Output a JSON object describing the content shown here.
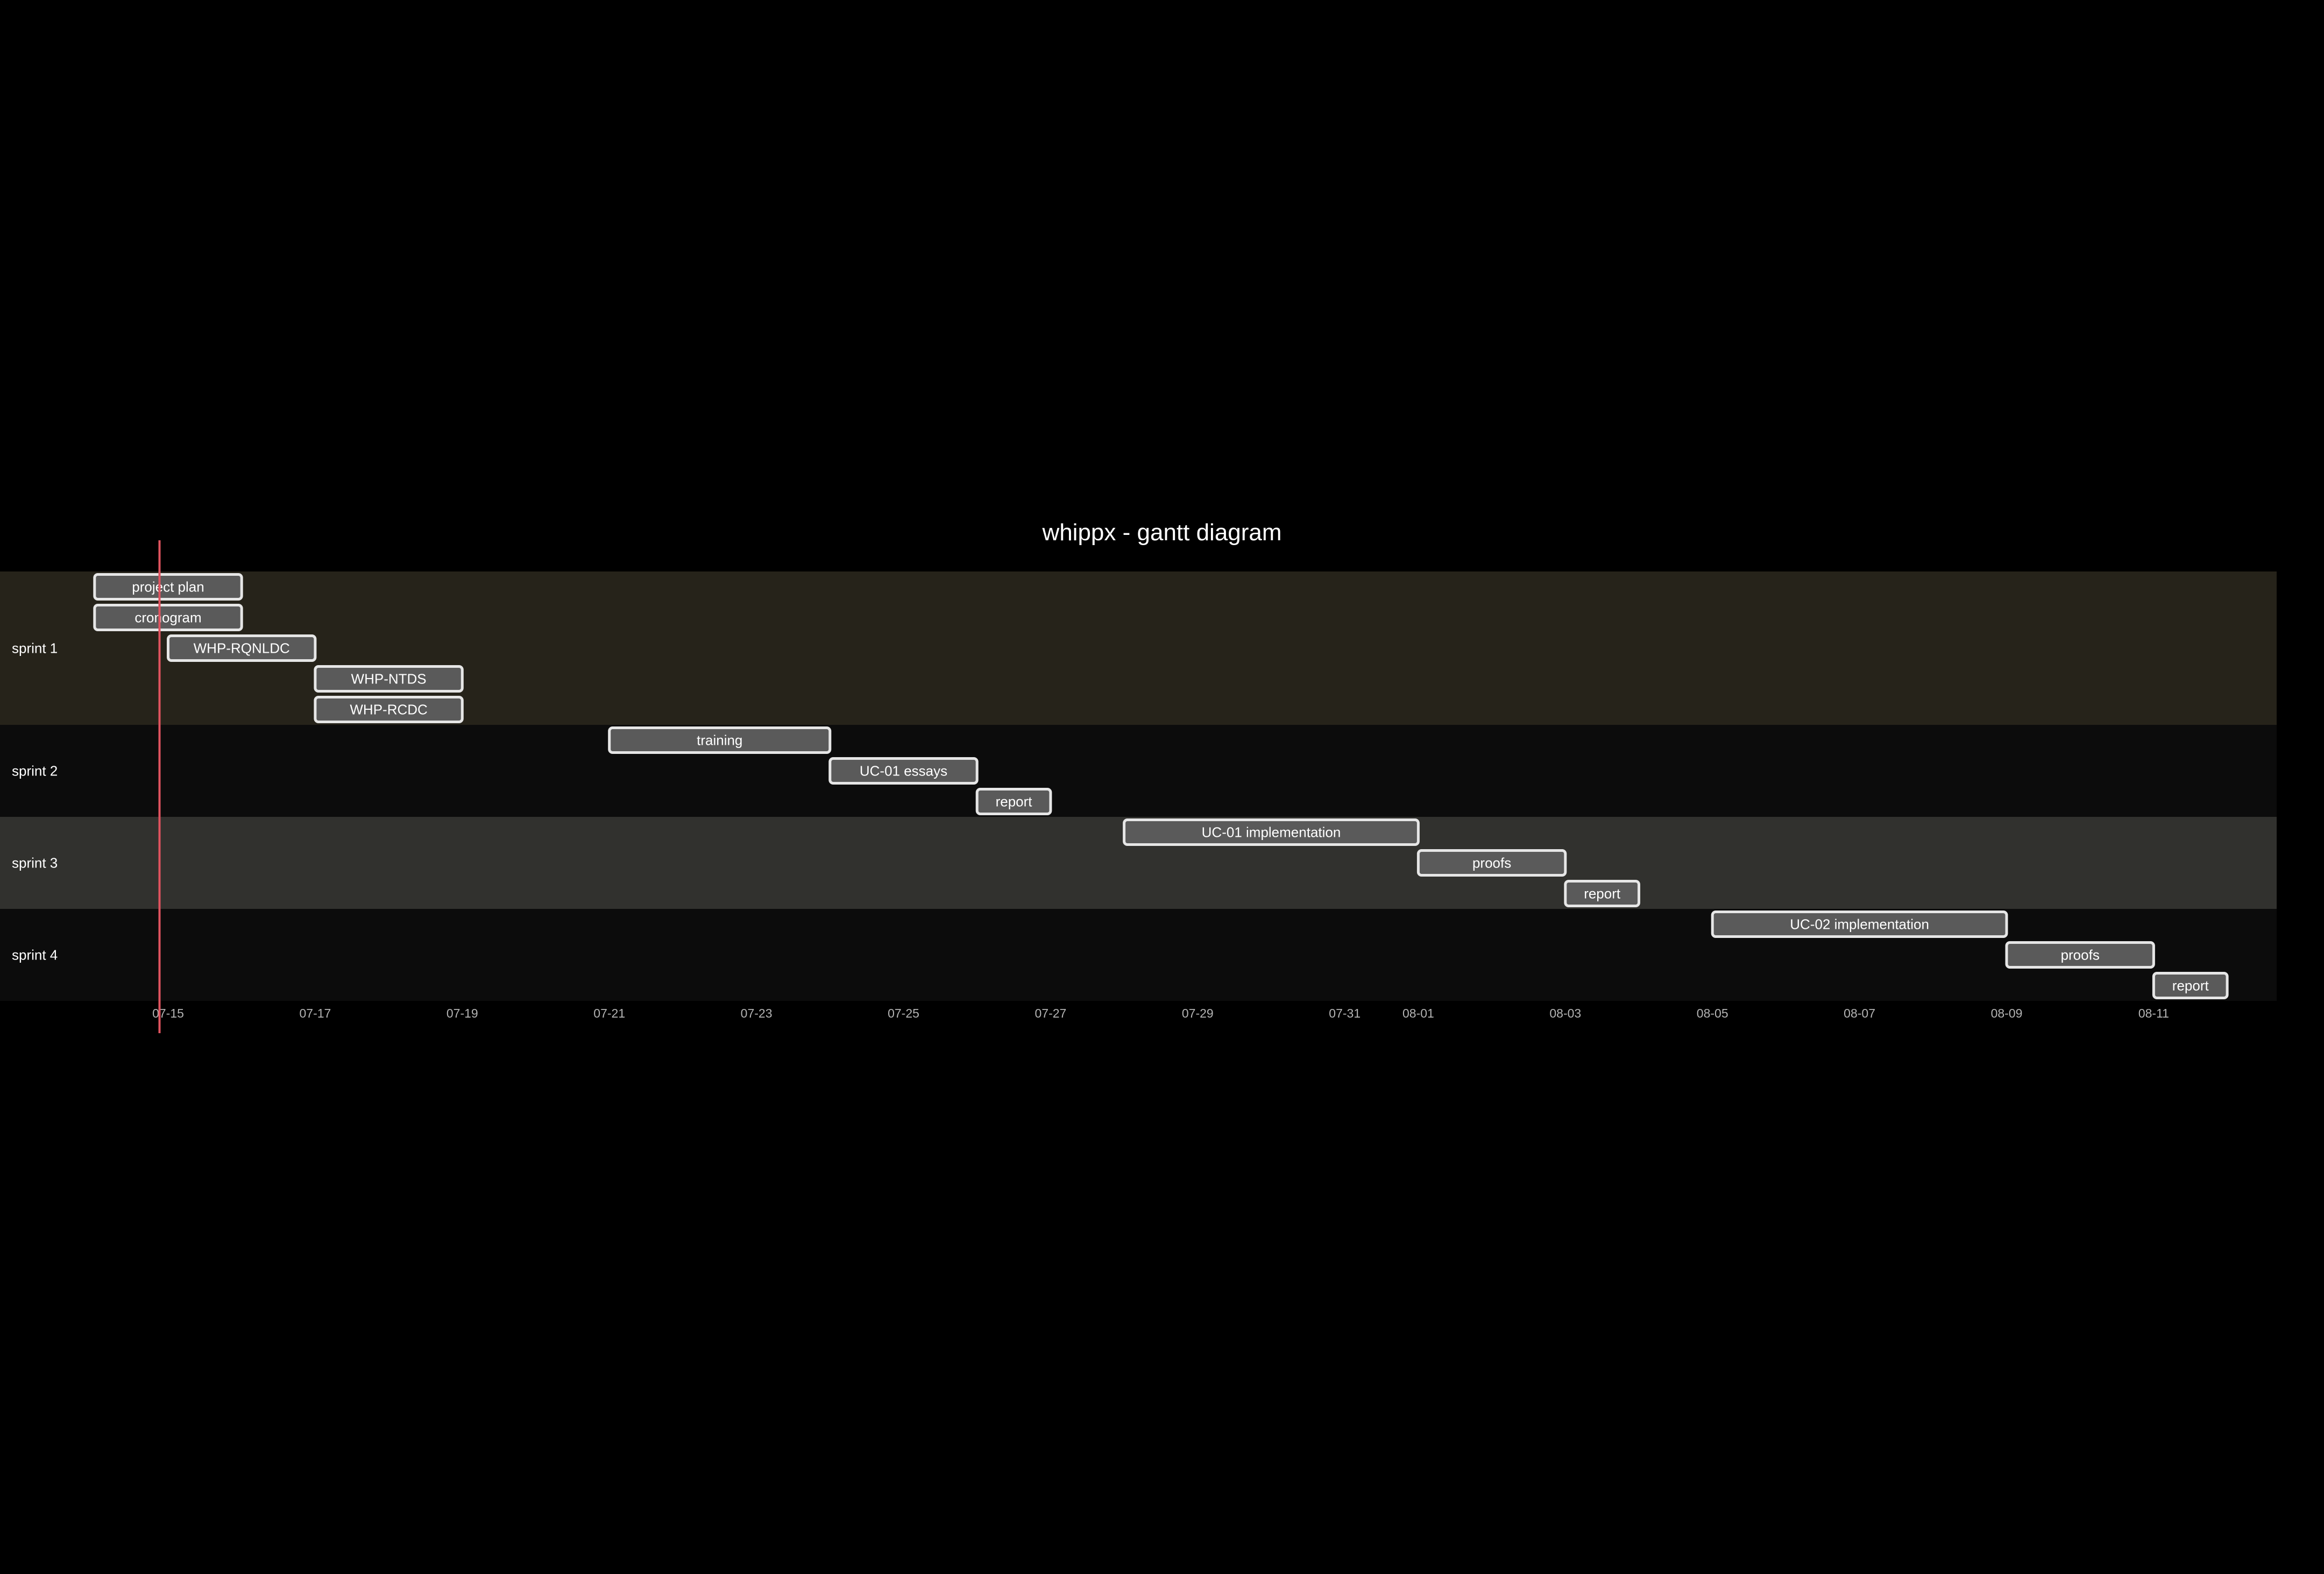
{
  "chart_data": {
    "type": "gantt",
    "title": "whippx - gantt diagram",
    "date_format": "MM-DD",
    "today": "07-15",
    "sections": [
      {
        "name": "sprint 1",
        "color": "#26231a",
        "tasks": [
          {
            "label": "project plan",
            "start": "07-14",
            "end": "07-16"
          },
          {
            "label": "cronogram",
            "start": "07-14",
            "end": "07-16"
          },
          {
            "label": "WHP-RQNLDC",
            "start": "07-15",
            "end": "07-17"
          },
          {
            "label": "WHP-NTDS",
            "start": "07-17",
            "end": "07-19"
          },
          {
            "label": "WHP-RCDC",
            "start": "07-17",
            "end": "07-19"
          }
        ]
      },
      {
        "name": "sprint 2",
        "color": "#0c0c0c",
        "tasks": [
          {
            "label": "training",
            "start": "07-21",
            "end": "07-24"
          },
          {
            "label": "UC-01 essays",
            "start": "07-24",
            "end": "07-26"
          },
          {
            "label": "report",
            "start": "07-26",
            "end": "07-27"
          }
        ]
      },
      {
        "name": "sprint 3",
        "color": "#31312e",
        "tasks": [
          {
            "label": "UC-01 implementation",
            "start": "07-28",
            "end": "08-01"
          },
          {
            "label": "proofs",
            "start": "08-01",
            "end": "08-03"
          },
          {
            "label": "report",
            "start": "08-03",
            "end": "08-04"
          }
        ]
      },
      {
        "name": "sprint 4",
        "color": "#0c0c0c",
        "tasks": [
          {
            "label": "UC-02 implementation",
            "start": "08-05",
            "end": "08-09"
          },
          {
            "label": "proofs",
            "start": "08-09",
            "end": "08-11"
          },
          {
            "label": "report",
            "start": "08-11",
            "end": "08-12"
          }
        ]
      }
    ],
    "x_ticks": [
      "07-15",
      "07-17",
      "07-19",
      "07-21",
      "07-23",
      "07-25",
      "07-27",
      "07-29",
      "07-31",
      "08-01",
      "08-03",
      "08-05",
      "08-07",
      "08-09",
      "08-11"
    ]
  }
}
